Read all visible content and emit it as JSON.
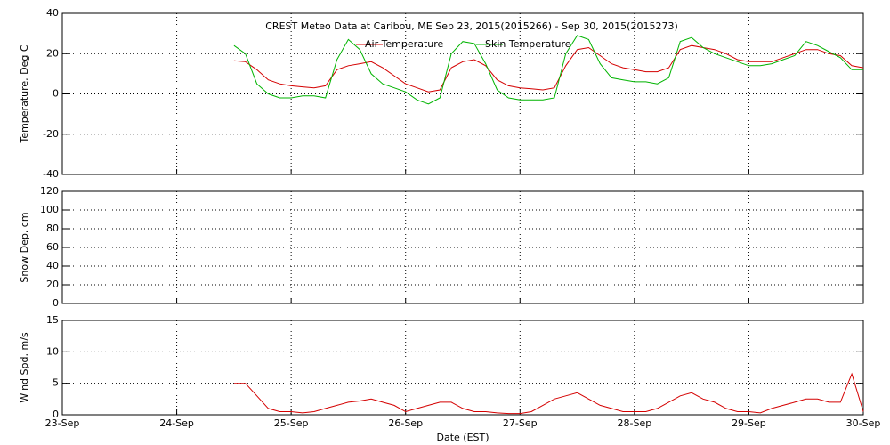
{
  "chart_data": [
    {
      "type": "line",
      "title": "CREST Meteo Data at Caribou, ME   Sep 23, 2015(2015266) - Sep 30, 2015(2015273)",
      "ylabel": "Temperature, Deg C",
      "xlim": [
        0,
        7
      ],
      "xticks": [
        0,
        1,
        2,
        3,
        4,
        5,
        6,
        7
      ],
      "ylim": [
        -40,
        40
      ],
      "yticks": [
        -40,
        -20,
        0,
        20,
        40
      ],
      "grid": true,
      "x": [
        1.5,
        1.6,
        1.7,
        1.8,
        1.9,
        2.0,
        2.1,
        2.2,
        2.3,
        2.4,
        2.5,
        2.6,
        2.7,
        2.8,
        2.9,
        3.0,
        3.1,
        3.2,
        3.3,
        3.4,
        3.5,
        3.6,
        3.7,
        3.8,
        3.9,
        4.0,
        4.1,
        4.2,
        4.3,
        4.4,
        4.5,
        4.6,
        4.7,
        4.8,
        4.9,
        5.0,
        5.1,
        5.2,
        5.3,
        5.4,
        5.5,
        5.6,
        5.7,
        5.8,
        5.9,
        6.0,
        6.1,
        6.2,
        6.3,
        6.4,
        6.5,
        6.6,
        6.7,
        6.8,
        6.9,
        7.0
      ],
      "series": [
        {
          "name": "Air Temperature",
          "color": "#d40000",
          "values": [
            16.5,
            16,
            12,
            7,
            5,
            4,
            3.5,
            3,
            4,
            12,
            14,
            15,
            16,
            13,
            9,
            5,
            3,
            1,
            2,
            13,
            16,
            17,
            14,
            7,
            4,
            3,
            2.5,
            2,
            3,
            14,
            22,
            23,
            19,
            15,
            13,
            12,
            11,
            11,
            13,
            22,
            24,
            23,
            22,
            20,
            17,
            16,
            16,
            16,
            18,
            20,
            22,
            22,
            20,
            19,
            14,
            13
          ]
        },
        {
          "name": "Skin Temperature",
          "color": "#00b400",
          "values": [
            24,
            20,
            5,
            0,
            -2,
            -2,
            -1,
            -1,
            -2,
            17,
            27,
            22,
            10,
            5,
            3,
            1,
            -3,
            -5,
            -2,
            20,
            26,
            25,
            15,
            2,
            -2,
            -3,
            -3,
            -3,
            -2,
            20,
            29,
            27,
            15,
            8,
            7,
            6,
            6,
            5,
            8,
            26,
            28,
            23,
            20,
            18,
            16,
            14,
            14,
            15,
            17,
            19,
            26,
            24,
            21,
            18,
            12,
            12
          ]
        }
      ]
    },
    {
      "type": "line",
      "ylabel": "Snow Dep, cm",
      "xlim": [
        0,
        7
      ],
      "xticks": [
        0,
        1,
        2,
        3,
        4,
        5,
        6,
        7
      ],
      "ylim": [
        0,
        120
      ],
      "yticks": [
        0,
        20,
        40,
        60,
        80,
        100,
        120
      ],
      "grid": true,
      "series": []
    },
    {
      "type": "line",
      "ylabel": "Wind Spd, m/s",
      "xlabel": "Date (EST)",
      "xlim": [
        0,
        7
      ],
      "xticks": [
        {
          "value": 0,
          "label": "23-Sep"
        },
        {
          "value": 1,
          "label": "24-Sep"
        },
        {
          "value": 2,
          "label": "25-Sep"
        },
        {
          "value": 3,
          "label": "26-Sep"
        },
        {
          "value": 4,
          "label": "27-Sep"
        },
        {
          "value": 5,
          "label": "28-Sep"
        },
        {
          "value": 6,
          "label": "29-Sep"
        },
        {
          "value": 7,
          "label": "30-Sep"
        }
      ],
      "ylim": [
        0,
        15
      ],
      "yticks": [
        0,
        5,
        10,
        15
      ],
      "grid": true,
      "x": [
        1.5,
        1.6,
        1.7,
        1.8,
        1.9,
        2.0,
        2.1,
        2.2,
        2.3,
        2.4,
        2.5,
        2.6,
        2.7,
        2.8,
        2.9,
        3.0,
        3.1,
        3.2,
        3.3,
        3.4,
        3.5,
        3.6,
        3.7,
        3.8,
        3.9,
        4.0,
        4.1,
        4.2,
        4.3,
        4.4,
        4.5,
        4.6,
        4.7,
        4.8,
        4.9,
        5.0,
        5.1,
        5.2,
        5.3,
        5.4,
        5.5,
        5.6,
        5.7,
        5.8,
        5.9,
        6.0,
        6.1,
        6.2,
        6.3,
        6.4,
        6.5,
        6.6,
        6.7,
        6.8,
        6.9,
        7.0
      ],
      "series": [
        {
          "color": "#d40000",
          "values": [
            5,
            5,
            3,
            1,
            0.5,
            0.5,
            0.3,
            0.5,
            1,
            1.5,
            2,
            2.2,
            2.5,
            2,
            1.5,
            0.5,
            1,
            1.5,
            2,
            2,
            1,
            0.5,
            0.5,
            0.3,
            0.2,
            0.2,
            0.5,
            1.5,
            2.5,
            3,
            3.5,
            2.5,
            1.5,
            1,
            0.5,
            0.5,
            0.5,
            1,
            2,
            3,
            3.5,
            2.5,
            2,
            1,
            0.5,
            0.5,
            0.3,
            1,
            1.5,
            2,
            2.5,
            2.5,
            2,
            2,
            6.5,
            0.5
          ]
        }
      ]
    }
  ]
}
